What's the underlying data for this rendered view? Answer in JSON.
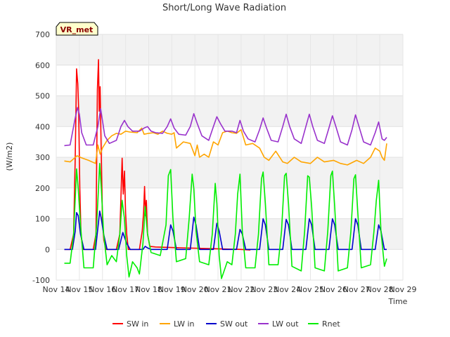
{
  "chart_data": {
    "type": "line",
    "title": "Short/Long Wave Radiation",
    "xlabel": "Time",
    "ylabel": "(W/m2)",
    "badge": "VR_met",
    "xlim": [
      14,
      29
    ],
    "ylim": [
      -100,
      700
    ],
    "yticks": [
      -100,
      0,
      100,
      200,
      300,
      400,
      500,
      600,
      700
    ],
    "xticks": [
      14,
      15,
      16,
      17,
      18,
      19,
      20,
      21,
      22,
      23,
      24,
      25,
      26,
      27,
      28,
      29
    ],
    "xtick_labels": [
      "Nov 14",
      "Nov 15",
      "Nov 16",
      "Nov 17",
      "Nov 18",
      "Nov 19",
      "Nov 20",
      "Nov 21",
      "Nov 22",
      "Nov 23",
      "Nov 24",
      "Nov 25",
      "Nov 26",
      "Nov 27",
      "Nov 28",
      "Nov 29"
    ],
    "grid": true,
    "legend_position": "bottom",
    "series": [
      {
        "name": "SW in",
        "color": "#ff0000",
        "x": [
          14.35,
          14.6,
          14.75,
          14.82,
          14.88,
          14.93,
          14.97,
          15.02,
          15.07,
          15.15,
          15.3,
          15.6,
          15.72,
          15.78,
          15.83,
          15.86,
          15.9,
          15.95,
          16.0,
          16.06,
          16.15,
          16.3,
          16.6,
          16.75,
          16.8,
          16.85,
          16.9,
          16.95,
          17.0,
          17.05,
          17.12,
          17.3,
          17.6,
          17.72,
          17.78,
          17.82,
          17.86,
          17.9,
          17.95,
          18.05,
          18.3,
          19.0,
          20.0,
          21.0,
          22.0,
          22.4
        ],
        "y": [
          0,
          0,
          50,
          300,
          588,
          540,
          450,
          200,
          50,
          0,
          0,
          0,
          50,
          520,
          618,
          450,
          530,
          300,
          100,
          30,
          0,
          0,
          0,
          50,
          170,
          297,
          180,
          255,
          120,
          50,
          0,
          0,
          0,
          60,
          120,
          205,
          110,
          160,
          50,
          10,
          8,
          6,
          4,
          2,
          0,
          -2
        ]
      },
      {
        "name": "LW in",
        "color": "#ffa500",
        "x": [
          14.35,
          14.6,
          14.9,
          15.1,
          15.4,
          15.7,
          15.8,
          15.9,
          16.0,
          16.2,
          16.4,
          16.6,
          16.8,
          17.0,
          17.2,
          17.5,
          17.7,
          17.8,
          18.0,
          18.2,
          18.4,
          18.6,
          18.8,
          19.0,
          19.1,
          19.2,
          19.5,
          19.8,
          20.0,
          20.1,
          20.2,
          20.4,
          20.6,
          20.8,
          21.0,
          21.2,
          21.4,
          21.6,
          21.8,
          22.0,
          22.2,
          22.5,
          22.8,
          23.0,
          23.2,
          23.5,
          23.8,
          24.0,
          24.3,
          24.6,
          25.0,
          25.3,
          25.6,
          26.0,
          26.3,
          26.6,
          27.0,
          27.3,
          27.6,
          27.8,
          28.0,
          28.1,
          28.2,
          28.3
        ],
        "y": [
          288,
          285,
          305,
          298,
          290,
          280,
          340,
          310,
          330,
          355,
          370,
          378,
          375,
          385,
          382,
          380,
          395,
          375,
          378,
          380,
          375,
          385,
          378,
          375,
          380,
          330,
          350,
          345,
          305,
          340,
          300,
          310,
          300,
          350,
          340,
          380,
          385,
          380,
          378,
          390,
          340,
          345,
          330,
          300,
          290,
          320,
          285,
          280,
          300,
          285,
          280,
          300,
          285,
          290,
          280,
          275,
          290,
          280,
          300,
          330,
          320,
          300,
          290,
          345
        ]
      },
      {
        "name": "SW out",
        "color": "#0000cc",
        "x": [
          14.35,
          14.7,
          14.82,
          14.88,
          14.95,
          15.05,
          15.2,
          15.7,
          15.8,
          15.88,
          15.95,
          16.05,
          16.2,
          16.7,
          16.8,
          16.88,
          16.95,
          17.05,
          17.2,
          17.75,
          17.85,
          17.95,
          18.1,
          18.8,
          18.95,
          19.05,
          19.2,
          19.8,
          19.95,
          20.05,
          20.2,
          20.8,
          20.95,
          21.05,
          21.2,
          21.8,
          21.95,
          22.05,
          22.2,
          22.8,
          22.95,
          23.05,
          23.2,
          23.8,
          23.95,
          24.05,
          24.2,
          24.8,
          24.95,
          25.05,
          25.2,
          25.8,
          25.95,
          26.05,
          26.2,
          26.8,
          26.95,
          27.05,
          27.2,
          27.8,
          27.95,
          28.05,
          28.2,
          28.3
        ],
        "y": [
          0,
          0,
          60,
          120,
          110,
          50,
          0,
          0,
          70,
          125,
          100,
          50,
          0,
          0,
          30,
          55,
          40,
          20,
          0,
          0,
          10,
          5,
          0,
          0,
          80,
          60,
          0,
          0,
          105,
          80,
          0,
          0,
          85,
          60,
          0,
          0,
          65,
          50,
          0,
          0,
          100,
          80,
          0,
          0,
          98,
          80,
          0,
          0,
          100,
          80,
          0,
          0,
          100,
          80,
          0,
          0,
          100,
          80,
          0,
          0,
          80,
          60,
          0,
          0
        ]
      },
      {
        "name": "LW out",
        "color": "#9932cc",
        "x": [
          14.35,
          14.6,
          14.8,
          14.92,
          15.0,
          15.1,
          15.3,
          15.6,
          15.8,
          15.92,
          16.0,
          16.1,
          16.3,
          16.6,
          16.8,
          16.95,
          17.1,
          17.3,
          17.6,
          17.8,
          17.95,
          18.1,
          18.3,
          18.6,
          18.8,
          18.95,
          19.1,
          19.3,
          19.6,
          19.8,
          19.95,
          20.1,
          20.3,
          20.6,
          20.8,
          20.95,
          21.1,
          21.3,
          21.6,
          21.8,
          21.95,
          22.1,
          22.3,
          22.6,
          22.8,
          22.95,
          23.1,
          23.3,
          23.6,
          23.8,
          23.95,
          24.1,
          24.3,
          24.6,
          24.8,
          24.95,
          25.1,
          25.3,
          25.6,
          25.8,
          25.95,
          26.1,
          26.3,
          26.6,
          26.8,
          26.95,
          27.1,
          27.3,
          27.6,
          27.8,
          27.95,
          28.1,
          28.2,
          28.3
        ],
        "y": [
          338,
          340,
          420,
          462,
          440,
          380,
          340,
          340,
          400,
          458,
          420,
          370,
          345,
          355,
          400,
          420,
          400,
          385,
          385,
          395,
          400,
          385,
          380,
          378,
          400,
          425,
          395,
          375,
          372,
          400,
          442,
          410,
          370,
          355,
          400,
          432,
          410,
          385,
          385,
          380,
          420,
          385,
          360,
          350,
          390,
          428,
          395,
          355,
          350,
          400,
          440,
          400,
          360,
          345,
          400,
          440,
          400,
          355,
          345,
          395,
          435,
          400,
          350,
          340,
          390,
          438,
          400,
          350,
          340,
          380,
          415,
          360,
          355,
          365
        ]
      },
      {
        "name": "Rnet",
        "color": "#00ee00",
        "x": [
          14.35,
          14.6,
          14.75,
          14.88,
          14.95,
          15.05,
          15.2,
          15.6,
          15.75,
          15.88,
          15.95,
          16.05,
          16.2,
          16.4,
          16.6,
          16.75,
          16.85,
          16.95,
          17.05,
          17.15,
          17.3,
          17.5,
          17.6,
          17.75,
          17.85,
          17.95,
          18.1,
          18.5,
          18.75,
          18.85,
          18.95,
          19.05,
          19.2,
          19.6,
          19.75,
          19.88,
          19.95,
          20.05,
          20.2,
          20.6,
          20.75,
          20.88,
          20.95,
          21.05,
          21.15,
          21.4,
          21.6,
          21.75,
          21.85,
          21.95,
          22.05,
          22.2,
          22.6,
          22.75,
          22.88,
          22.95,
          23.05,
          23.2,
          23.6,
          23.75,
          23.88,
          23.95,
          24.05,
          24.2,
          24.6,
          24.75,
          24.88,
          24.95,
          25.05,
          25.2,
          25.6,
          25.75,
          25.88,
          25.95,
          26.05,
          26.2,
          26.6,
          26.75,
          26.88,
          26.95,
          27.05,
          27.2,
          27.6,
          27.75,
          27.85,
          27.95,
          28.05,
          28.2,
          28.3
        ],
        "y": [
          -45,
          -45,
          50,
          262,
          200,
          80,
          -60,
          -60,
          80,
          280,
          200,
          50,
          -50,
          -20,
          -40,
          50,
          160,
          100,
          -20,
          -90,
          -40,
          -60,
          -80,
          20,
          140,
          50,
          -10,
          -20,
          80,
          240,
          260,
          100,
          -40,
          -30,
          100,
          245,
          200,
          60,
          -40,
          -50,
          50,
          215,
          150,
          -20,
          -95,
          -40,
          -50,
          50,
          180,
          245,
          60,
          -60,
          -60,
          50,
          230,
          252,
          150,
          -50,
          -50,
          60,
          240,
          248,
          150,
          -55,
          -70,
          60,
          240,
          235,
          140,
          -60,
          -70,
          60,
          240,
          255,
          140,
          -70,
          -60,
          60,
          230,
          243,
          120,
          -60,
          -50,
          60,
          160,
          225,
          60,
          -55,
          -30
        ]
      }
    ]
  }
}
